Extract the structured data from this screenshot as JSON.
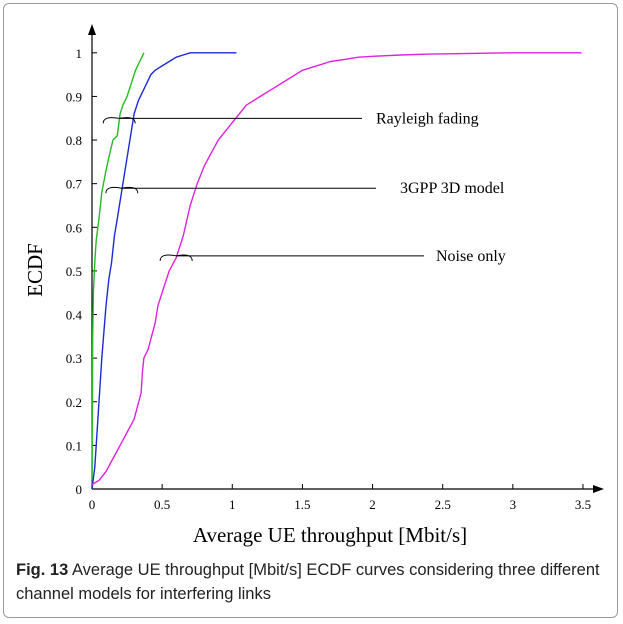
{
  "caption": {
    "label": "Fig. 13",
    "text": " Average UE throughput [Mbit/s] ECDF curves considering three different channel models for interfering links"
  },
  "chart_data": {
    "type": "line",
    "xlabel": "Average UE throughput [Mbit/s]",
    "ylabel": "ECDF",
    "xlim": [
      0,
      3.6
    ],
    "ylim": [
      0,
      1.05
    ],
    "xticks": [
      "0",
      "0.5",
      "1",
      "1.5",
      "2",
      "2.5",
      "3",
      "3.5"
    ],
    "yticks": [
      "0",
      "0.1",
      "0.2",
      "0.3",
      "0.4",
      "0.5",
      "0.6",
      "0.7",
      "0.8",
      "0.9",
      "1"
    ],
    "grid": false,
    "series": [
      {
        "name": "Rayleigh fading",
        "color": "#22bb22",
        "x": [
          0,
          0.005,
          0.01,
          0.02,
          0.03,
          0.05,
          0.07,
          0.1,
          0.12,
          0.15,
          0.18,
          0.2,
          0.22,
          0.25,
          0.28,
          0.31,
          0.34,
          0.37
        ],
        "y": [
          0,
          0.35,
          0.45,
          0.52,
          0.57,
          0.62,
          0.68,
          0.73,
          0.76,
          0.8,
          0.81,
          0.86,
          0.88,
          0.9,
          0.93,
          0.96,
          0.98,
          1.0
        ]
      },
      {
        "name": "3GPP 3D model",
        "color": "#1a2bd6",
        "x": [
          0,
          0.02,
          0.04,
          0.07,
          0.1,
          0.12,
          0.14,
          0.16,
          0.18,
          0.2,
          0.22,
          0.24,
          0.26,
          0.28,
          0.3,
          0.33,
          0.36,
          0.39,
          0.42,
          0.45,
          0.5,
          0.55,
          0.6,
          0.65,
          0.7,
          0.75,
          0.8,
          1.03
        ],
        "y": [
          0,
          0.05,
          0.15,
          0.3,
          0.42,
          0.48,
          0.52,
          0.58,
          0.62,
          0.66,
          0.7,
          0.74,
          0.78,
          0.82,
          0.86,
          0.89,
          0.91,
          0.93,
          0.95,
          0.96,
          0.97,
          0.98,
          0.99,
          0.995,
          1.0,
          1.0,
          1.0,
          1.0
        ]
      },
      {
        "name": "Noise only",
        "color": "#e020e0",
        "x": [
          0,
          0.05,
          0.1,
          0.15,
          0.2,
          0.25,
          0.3,
          0.35,
          0.36,
          0.37,
          0.4,
          0.45,
          0.47,
          0.5,
          0.55,
          0.6,
          0.65,
          0.7,
          0.75,
          0.8,
          0.85,
          0.9,
          0.95,
          1.0,
          1.05,
          1.1,
          1.2,
          1.3,
          1.4,
          1.5,
          1.6,
          1.7,
          1.8,
          1.9,
          2.0,
          2.2,
          2.4,
          2.6,
          2.8,
          3.0,
          3.2,
          3.49
        ],
        "y": [
          0.01,
          0.02,
          0.04,
          0.07,
          0.1,
          0.13,
          0.16,
          0.22,
          0.27,
          0.3,
          0.32,
          0.38,
          0.42,
          0.45,
          0.5,
          0.53,
          0.58,
          0.65,
          0.7,
          0.74,
          0.77,
          0.8,
          0.82,
          0.84,
          0.86,
          0.88,
          0.9,
          0.92,
          0.94,
          0.96,
          0.97,
          0.98,
          0.985,
          0.99,
          0.992,
          0.995,
          0.997,
          0.998,
          0.999,
          1.0,
          1.0,
          1.0
        ]
      }
    ],
    "annotations": [
      {
        "text": "Rayleigh fading",
        "series": "Rayleigh fading",
        "at_y": 0.845
      },
      {
        "text": "3GPP 3D model",
        "series": "3GPP 3D model",
        "at_y": 0.685
      },
      {
        "text": "Noise only",
        "series": "Noise only",
        "at_y": 0.53
      }
    ]
  }
}
